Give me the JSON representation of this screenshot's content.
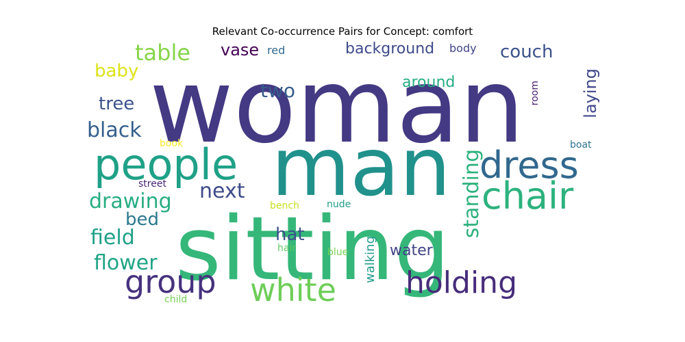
{
  "title": "Relevant Co-occurrence Pairs for Concept: comfort",
  "words": [
    {
      "text": "woman",
      "color": "#443983"
    },
    {
      "text": "man",
      "color": "#21918c"
    },
    {
      "text": "sitting",
      "color": "#35b779"
    },
    {
      "text": "people",
      "color": "#1fa187"
    },
    {
      "text": "dress",
      "color": "#31688e"
    },
    {
      "text": "chair",
      "color": "#2db27d"
    },
    {
      "text": "group",
      "color": "#46327e"
    },
    {
      "text": "white",
      "color": "#6ece58"
    },
    {
      "text": "holding",
      "color": "#472d7b"
    },
    {
      "text": "table",
      "color": "#86d549"
    },
    {
      "text": "couch",
      "color": "#3b528b"
    },
    {
      "text": "background",
      "color": "#3e4a89"
    },
    {
      "text": "vase",
      "color": "#440154"
    },
    {
      "text": "red",
      "color": "#31688e"
    },
    {
      "text": "body",
      "color": "#414487"
    },
    {
      "text": "baby",
      "color": "#dde318"
    },
    {
      "text": "two",
      "color": "#365c8d"
    },
    {
      "text": "around",
      "color": "#25ac82"
    },
    {
      "text": "laying",
      "color": "#3f4889"
    },
    {
      "text": "room",
      "color": "#481f70"
    },
    {
      "text": "tree",
      "color": "#3b528b"
    },
    {
      "text": "black",
      "color": "#355f8d"
    },
    {
      "text": "book",
      "color": "#fde725"
    },
    {
      "text": "boat",
      "color": "#2c728e"
    },
    {
      "text": "standing",
      "color": "#2db27d"
    },
    {
      "text": "next",
      "color": "#3e4c8a"
    },
    {
      "text": "street",
      "color": "#482475"
    },
    {
      "text": "drawing",
      "color": "#27ad81"
    },
    {
      "text": "bench",
      "color": "#c8e020"
    },
    {
      "text": "nude",
      "color": "#1f9e89"
    },
    {
      "text": "bed",
      "color": "#2a788e"
    },
    {
      "text": "field",
      "color": "#1fa088"
    },
    {
      "text": "hat",
      "color": "#3b528b"
    },
    {
      "text": "flower",
      "color": "#20a486"
    },
    {
      "text": "hair",
      "color": "#5ec962"
    },
    {
      "text": "blue",
      "color": "#75d054"
    },
    {
      "text": "water",
      "color": "#414487"
    },
    {
      "text": "walking",
      "color": "#1f9a8a"
    },
    {
      "text": "child",
      "color": "#73d056"
    }
  ]
}
